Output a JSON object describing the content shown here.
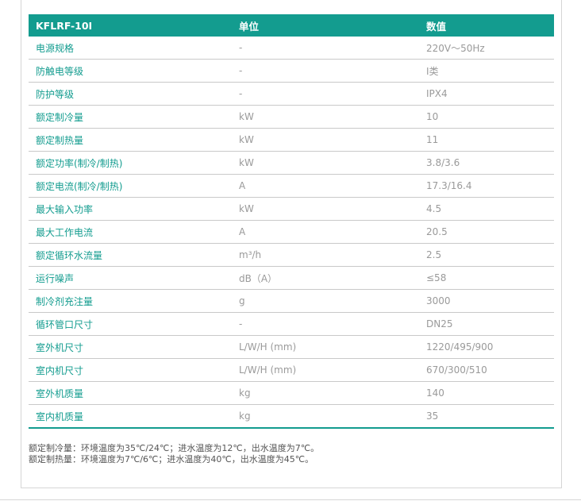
{
  "table": {
    "headers": [
      "KFLRF-10I",
      "单位",
      "数值"
    ],
    "rows": [
      [
        "电源规格",
        "-",
        "220V～50Hz"
      ],
      [
        "防触电等级",
        "-",
        "I类"
      ],
      [
        "防护等级",
        "-",
        "IPX4"
      ],
      [
        "额定制冷量",
        "kW",
        "10"
      ],
      [
        "额定制热量",
        "kW",
        "11"
      ],
      [
        "额定功率(制冷/制热)",
        "kW",
        "3.8/3.6"
      ],
      [
        "额定电流(制冷/制热)",
        "A",
        "17.3/16.4"
      ],
      [
        "最大输入功率",
        "kW",
        "4.5"
      ],
      [
        "最大工作电流",
        "A",
        "20.5"
      ],
      [
        "额定循环水流量",
        "m³/h",
        "2.5"
      ],
      [
        "运行噪声",
        "dB（A）",
        "≤58"
      ],
      [
        "制冷剂充注量",
        "g",
        "3000"
      ],
      [
        "循环管口尺寸",
        "-",
        "DN25"
      ],
      [
        "室外机尺寸",
        "L/W/H (mm)",
        "1220/495/900"
      ],
      [
        "室内机尺寸",
        "L/W/H (mm)",
        "670/300/510"
      ],
      [
        "室外机质量",
        "kg",
        "140"
      ],
      [
        "室内机质量",
        "kg",
        "35"
      ]
    ]
  },
  "notes": [
    "额定制冷量：环境温度为35℃/24℃；进水温度为12℃，出水温度为7℃。",
    "额定制热量：环境温度为7℃/6℃；进水温度为40℃，出水温度为45℃。"
  ],
  "colors": {
    "accent": "#139c8f",
    "value_text": "#9a9a9a"
  }
}
